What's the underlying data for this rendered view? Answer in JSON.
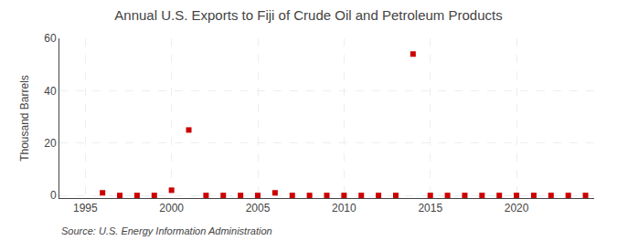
{
  "chart_data": {
    "type": "scatter",
    "title": "Annual U.S. Exports to Fiji of Crude Oil and Petroleum Products",
    "ylabel": "Thousand Barrels",
    "annotations": [
      "Source: U.S. Energy Information Administration"
    ],
    "x": [
      1996,
      1997,
      1998,
      1999,
      2000,
      2001,
      2002,
      2003,
      2004,
      2005,
      2006,
      2007,
      2008,
      2009,
      2010,
      2011,
      2012,
      2013,
      2014,
      2015,
      2016,
      2017,
      2018,
      2019,
      2020,
      2021,
      2022,
      2023,
      2024
    ],
    "values": [
      1,
      0,
      0,
      0,
      2,
      25,
      0,
      0,
      0,
      0,
      1,
      0,
      0,
      0,
      0,
      0,
      0,
      0,
      54,
      0,
      0,
      0,
      0,
      0,
      0,
      0,
      0,
      0,
      0
    ],
    "color": "#cc0000",
    "marker": "square",
    "xlim": [
      1993.5,
      2024.5
    ],
    "ylim": [
      -1,
      60
    ],
    "xticks": [
      1995,
      2000,
      2005,
      2010,
      2015,
      2020
    ],
    "yticks": [
      0,
      20,
      40,
      60
    ],
    "grid": true
  }
}
